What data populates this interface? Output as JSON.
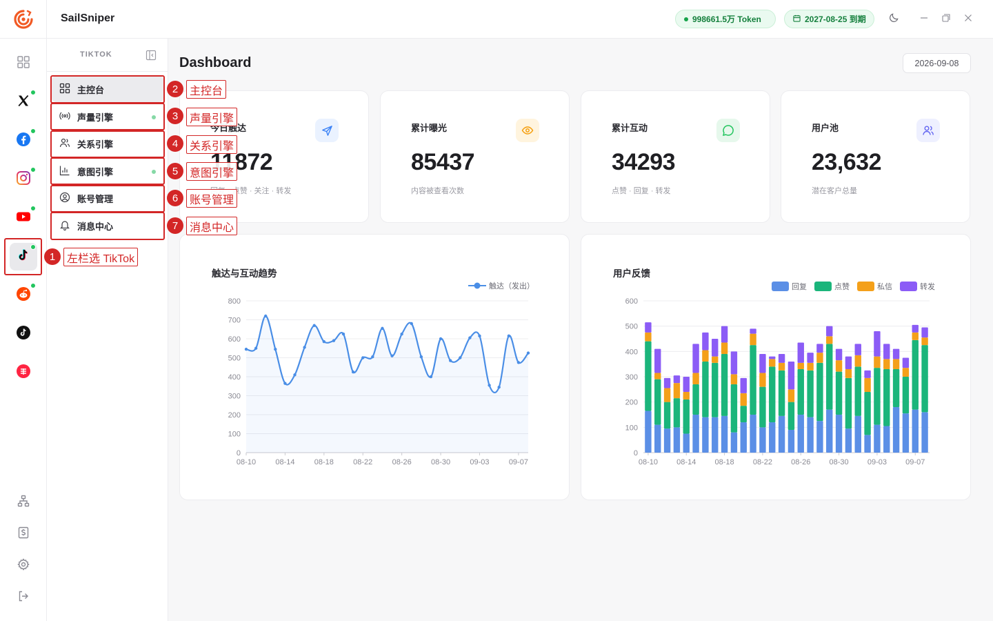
{
  "app": {
    "title": "SailSniper"
  },
  "header": {
    "token_label": "998661.5万 Token",
    "expiry_label": "2027-08-25 到期"
  },
  "rail": {
    "items": [
      {
        "name": "dashboard-grid-icon",
        "badge": false
      },
      {
        "name": "x-twitter-icon",
        "badge": true
      },
      {
        "name": "facebook-icon",
        "badge": true
      },
      {
        "name": "instagram-icon",
        "badge": true
      },
      {
        "name": "youtube-icon",
        "badge": true
      },
      {
        "name": "tiktok-icon",
        "badge": true,
        "active": true
      },
      {
        "name": "reddit-icon",
        "badge": true
      },
      {
        "name": "tiktok-alt-icon",
        "badge": false
      },
      {
        "name": "xiaohongshu-icon",
        "badge": false
      }
    ],
    "bottom": [
      "sitemap-icon",
      "billing-icon",
      "gear-icon",
      "logout-icon"
    ]
  },
  "sidebar": {
    "section_title": "TIKTOK",
    "items": [
      {
        "label": "主控台",
        "icon": "grid-icon",
        "active": true,
        "dot": false
      },
      {
        "label": "声量引擎",
        "icon": "broadcast-icon",
        "active": false,
        "dot": true
      },
      {
        "label": "关系引擎",
        "icon": "users-icon",
        "active": false,
        "dot": false
      },
      {
        "label": "意图引擎",
        "icon": "bar-chart-icon",
        "active": false,
        "dot": true
      },
      {
        "label": "账号管理",
        "icon": "user-circle-icon",
        "active": false,
        "dot": false
      },
      {
        "label": "消息中心",
        "icon": "bell-icon",
        "active": false,
        "dot": false
      }
    ]
  },
  "annotations": [
    {
      "num": "1",
      "label": "左栏选 TikTok"
    },
    {
      "num": "2",
      "label": "主控台"
    },
    {
      "num": "3",
      "label": "声量引擎"
    },
    {
      "num": "4",
      "label": "关系引擎"
    },
    {
      "num": "5",
      "label": "意图引擎"
    },
    {
      "num": "6",
      "label": "账号管理"
    },
    {
      "num": "7",
      "label": "消息中心"
    }
  ],
  "main": {
    "title": "Dashboard",
    "date": "2026-09-08",
    "stats": [
      {
        "label": "今日触达",
        "value": "11872",
        "sub": "回复 · 点赞 · 关注 · 转发",
        "icon": "send-icon",
        "color": "#3b82f6",
        "bg": "#eaf2ff"
      },
      {
        "label": "累计曝光",
        "value": "85437",
        "sub": "内容被查看次数",
        "icon": "eye-icon",
        "color": "#f59e0b",
        "bg": "#fff4de"
      },
      {
        "label": "累计互动",
        "value": "34293",
        "sub": "点赞 · 回复 · 转发",
        "icon": "message-icon",
        "color": "#22c55e",
        "bg": "#e6f8ec"
      },
      {
        "label": "用户池",
        "value": "23,632",
        "sub": "潜在客户总量",
        "icon": "users-icon",
        "color": "#6366f1",
        "bg": "#eef0ff"
      }
    ]
  },
  "chart_data": [
    {
      "type": "line",
      "title": "触达与互动趋势",
      "legend": [
        "触达（发出）"
      ],
      "x": [
        "08-10",
        "08-11",
        "08-12",
        "08-13",
        "08-14",
        "08-15",
        "08-16",
        "08-17",
        "08-18",
        "08-19",
        "08-20",
        "08-21",
        "08-22",
        "08-23",
        "08-24",
        "08-25",
        "08-26",
        "08-27",
        "08-28",
        "08-29",
        "08-30",
        "08-31",
        "09-01",
        "09-02",
        "09-03",
        "09-04",
        "09-05",
        "09-06",
        "09-07",
        "09-08"
      ],
      "x_ticks": [
        "08-10",
        "08-14",
        "08-18",
        "08-22",
        "08-26",
        "08-30",
        "09-03",
        "09-07"
      ],
      "y_ticks": [
        0,
        100,
        200,
        300,
        400,
        500,
        600,
        700,
        800
      ],
      "ylim": [
        0,
        800
      ],
      "series": [
        {
          "name": "触达（发出）",
          "color": "#4a8ee6",
          "values": [
            545,
            550,
            720,
            545,
            365,
            410,
            555,
            670,
            585,
            590,
            625,
            425,
            500,
            505,
            655,
            510,
            625,
            680,
            505,
            400,
            600,
            485,
            500,
            605,
            615,
            355,
            345,
            615,
            475,
            525
          ]
        }
      ]
    },
    {
      "type": "bar",
      "stacked": true,
      "title": "用户反馈",
      "legend": [
        "回复",
        "点赞",
        "私信",
        "转发"
      ],
      "x": [
        "08-10",
        "08-11",
        "08-12",
        "08-13",
        "08-14",
        "08-15",
        "08-16",
        "08-17",
        "08-18",
        "08-19",
        "08-20",
        "08-21",
        "08-22",
        "08-23",
        "08-24",
        "08-25",
        "08-26",
        "08-27",
        "08-28",
        "08-29",
        "08-30",
        "08-31",
        "09-01",
        "09-02",
        "09-03",
        "09-04",
        "09-05",
        "09-06",
        "09-07",
        "09-08"
      ],
      "x_ticks": [
        "08-10",
        "08-14",
        "08-18",
        "08-22",
        "08-26",
        "08-30",
        "09-03",
        "09-07"
      ],
      "y_ticks": [
        0,
        100,
        200,
        300,
        400,
        500,
        600
      ],
      "ylim": [
        0,
        600
      ],
      "series": [
        {
          "name": "回复",
          "color": "#5b8fe6",
          "values": [
            165,
            110,
            95,
            100,
            75,
            150,
            140,
            140,
            145,
            80,
            120,
            150,
            100,
            120,
            145,
            90,
            150,
            140,
            125,
            170,
            150,
            95,
            145,
            70,
            110,
            105,
            180,
            155,
            170,
            160
          ]
        },
        {
          "name": "点赞",
          "color": "#1bb57b",
          "values": [
            275,
            180,
            105,
            115,
            135,
            120,
            220,
            215,
            245,
            190,
            65,
            275,
            160,
            220,
            180,
            110,
            180,
            185,
            230,
            260,
            170,
            200,
            195,
            170,
            225,
            225,
            150,
            145,
            275,
            265
          ]
        },
        {
          "name": "私信",
          "color": "#f4a01a",
          "values": [
            35,
            25,
            55,
            60,
            30,
            45,
            45,
            25,
            45,
            40,
            50,
            45,
            55,
            30,
            30,
            50,
            25,
            30,
            40,
            30,
            45,
            35,
            45,
            55,
            45,
            40,
            40,
            35,
            30,
            30
          ]
        },
        {
          "name": "转发",
          "color": "#8b5cf6",
          "values": [
            40,
            95,
            40,
            30,
            60,
            115,
            70,
            70,
            65,
            90,
            60,
            20,
            75,
            10,
            35,
            110,
            80,
            40,
            35,
            40,
            45,
            50,
            45,
            30,
            100,
            60,
            40,
            40,
            30,
            40
          ]
        }
      ]
    }
  ]
}
